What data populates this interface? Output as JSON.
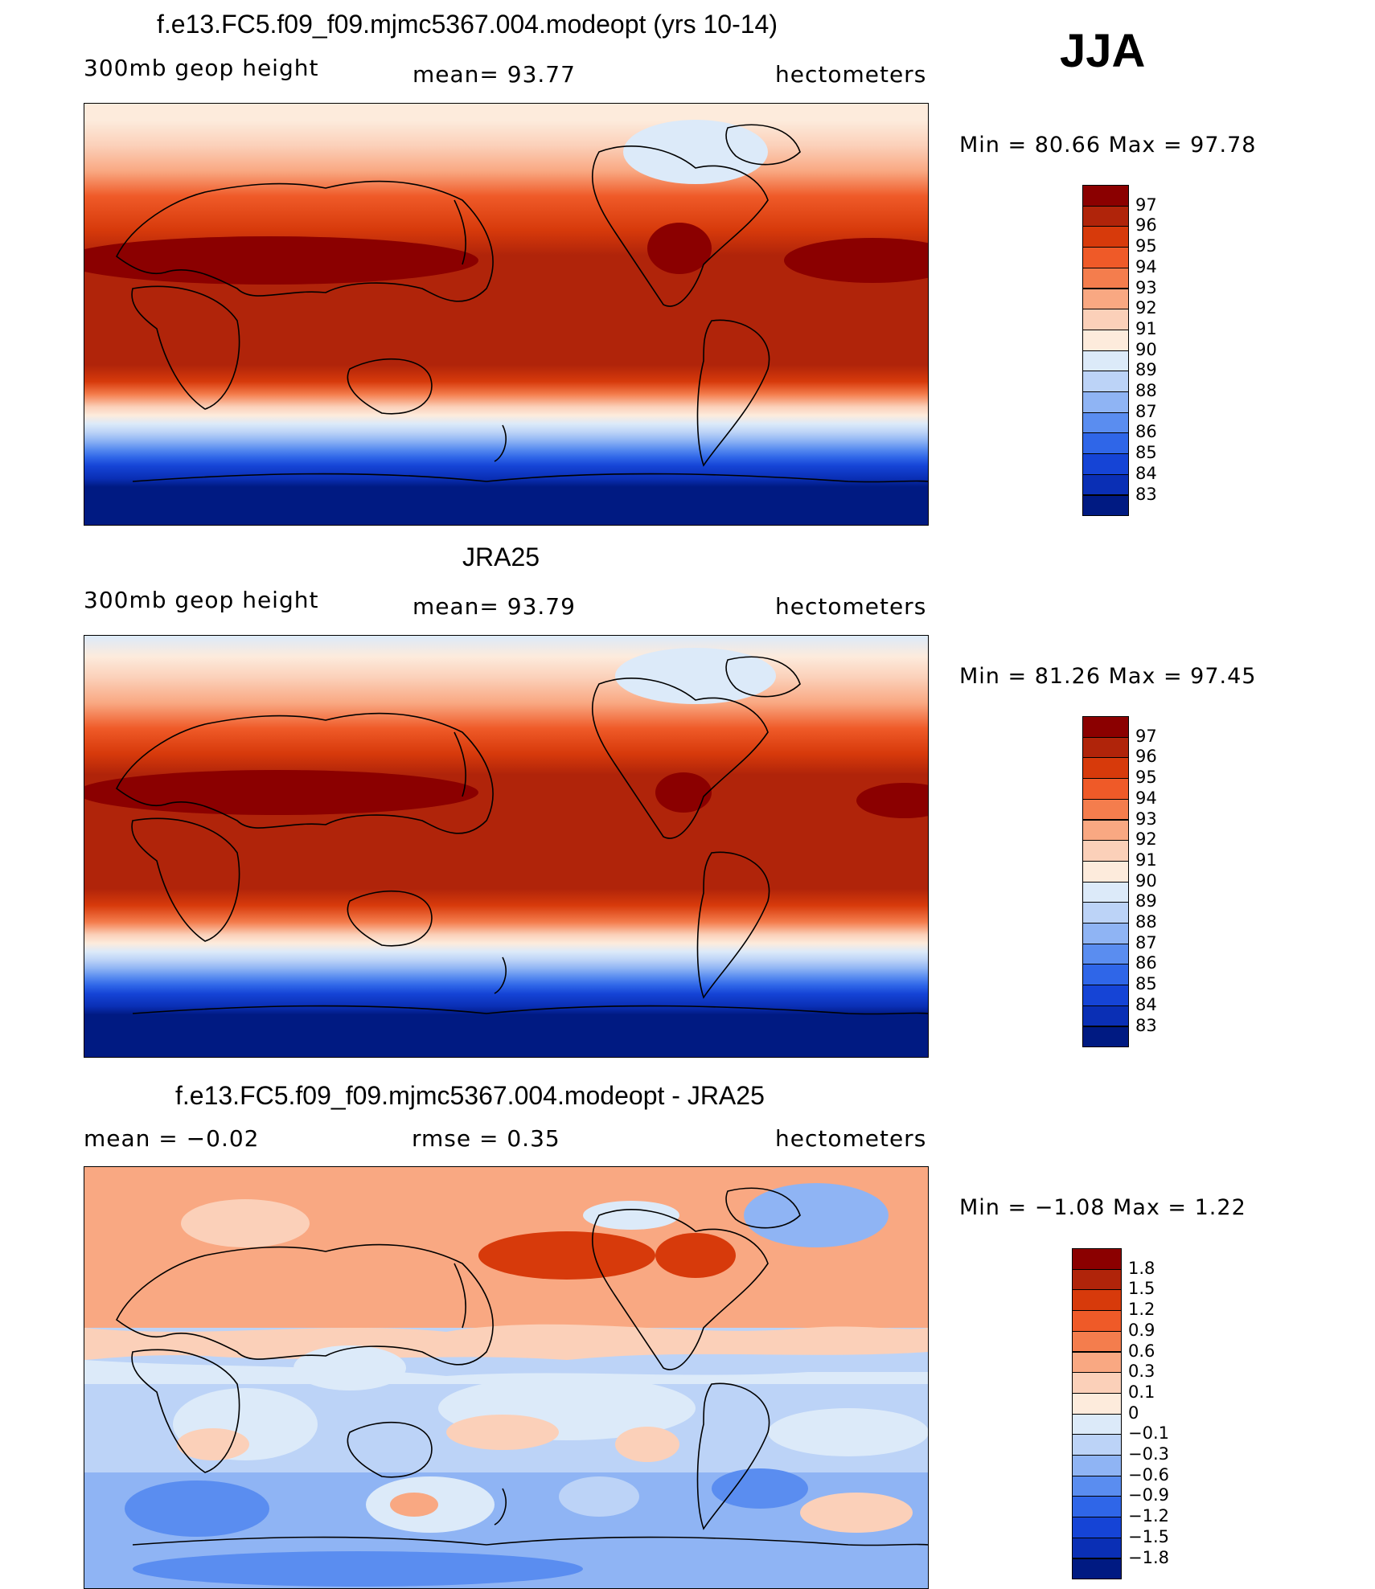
{
  "season": "JJA",
  "panels": [
    {
      "id": "model",
      "title": "f.e13.FC5.f09_f09.mjmc5367.004.modeopt (yrs 10-14)",
      "left_label": "300mb  geop  height",
      "center_label": "mean=   93.77",
      "right_label": "hectometers",
      "minmax": "Min  =    80.66  Max  =    97.78",
      "colorbar_labels": [
        "97",
        "96",
        "95",
        "94",
        "93",
        "92",
        "91",
        "90",
        "89",
        "88",
        "87",
        "86",
        "85",
        "84",
        "83"
      ],
      "colorbar_colors": [
        "#8b0000",
        "#b0240a",
        "#d73a0b",
        "#ef5a28",
        "#f47d4d",
        "#f9a882",
        "#fbd0b9",
        "#fdebdc",
        "#dceaf9",
        "#bcd3f7",
        "#8fb4f4",
        "#5a8df0",
        "#2f66e8",
        "#1544d6",
        "#0a2fb5",
        "#001a82"
      ]
    },
    {
      "id": "obs",
      "title": "JRA25",
      "left_label": "300mb  geop  height",
      "center_label": "mean=   93.79",
      "right_label": "hectometers",
      "minmax": "Min  =    81.26  Max  =    97.45",
      "colorbar_labels": [
        "97",
        "96",
        "95",
        "94",
        "93",
        "92",
        "91",
        "90",
        "89",
        "88",
        "87",
        "86",
        "85",
        "84",
        "83"
      ],
      "colorbar_colors": [
        "#8b0000",
        "#b0240a",
        "#d73a0b",
        "#ef5a28",
        "#f47d4d",
        "#f9a882",
        "#fbd0b9",
        "#fdebdc",
        "#dceaf9",
        "#bcd3f7",
        "#8fb4f4",
        "#5a8df0",
        "#2f66e8",
        "#1544d6",
        "#0a2fb5",
        "#001a82"
      ]
    },
    {
      "id": "diff",
      "title": "f.e13.FC5.f09_f09.mjmc5367.004.modeopt - JRA25",
      "left_label": "mean  =    −0.02",
      "center_label": "rmse  =     0.35",
      "right_label": "hectometers",
      "minmax": "Min  =    −1.08  Max  =      1.22",
      "colorbar_labels": [
        "1.8",
        "1.5",
        "1.2",
        "0.9",
        "0.6",
        "0.3",
        "0.1",
        "0",
        "−0.1",
        "−0.3",
        "−0.6",
        "−0.9",
        "−1.2",
        "−1.5",
        "−1.8"
      ],
      "colorbar_colors": [
        "#8b0000",
        "#b0240a",
        "#d73a0b",
        "#ef5a28",
        "#f47d4d",
        "#f9a882",
        "#fbd0b9",
        "#fdebdc",
        "#dceaf9",
        "#bcd3f7",
        "#8fb4f4",
        "#5a8df0",
        "#2f66e8",
        "#1544d6",
        "#0a2fb5",
        "#001a82"
      ]
    }
  ]
}
